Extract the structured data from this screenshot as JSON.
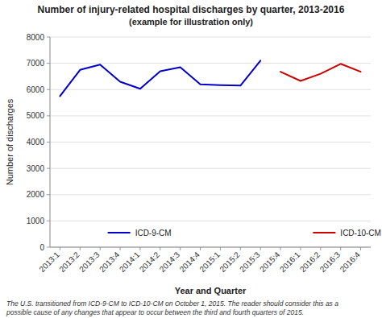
{
  "chart_data": {
    "type": "line",
    "title": "Number of injury-related hospital discharges by quarter, 2013-2016",
    "subtitle": "(example for illustration only)",
    "x_label": "Year and Quarter",
    "y_label": "Number of discharges",
    "footnote": "The U.S. transitioned from ICD-9-CM to ICD-10-CM on October 1, 2015. The reader should consider this as a\npossible cause of any changes that appear to occur between the third and fourth quarters of 2015.",
    "categories": [
      "2013:1",
      "2013:2",
      "2013:3",
      "2013:4",
      "2014:1",
      "2014:2",
      "2014:3",
      "2014:4",
      "2015:1",
      "2015:2",
      "2015:3",
      "2015:4",
      "2016:1",
      "2016:2",
      "2016:3",
      "2016:4"
    ],
    "series": [
      {
        "name": "ICD-9-CM",
        "color": "#0000CC",
        "values": [
          5750,
          6750,
          6950,
          6300,
          6030,
          6700,
          6850,
          6200,
          6170,
          6150,
          7100,
          null,
          null,
          null,
          null,
          null
        ]
      },
      {
        "name": "ICD-10-CM",
        "color": "#CC0000",
        "values": [
          null,
          null,
          null,
          null,
          null,
          null,
          null,
          null,
          null,
          null,
          null,
          6680,
          6330,
          6600,
          6980,
          6680
        ]
      }
    ],
    "ylim": [
      0,
      8000
    ],
    "yticks": [
      0,
      1000,
      2000,
      3000,
      4000,
      5000,
      6000,
      7000,
      8000
    ],
    "grid": true,
    "legend": "bottom"
  }
}
